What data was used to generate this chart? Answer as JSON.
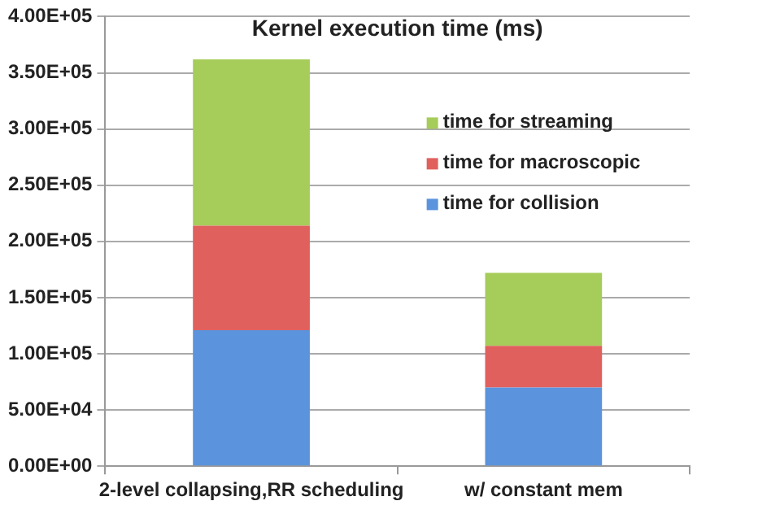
{
  "chart_data": {
    "type": "bar",
    "title": "Kernel execution time (ms)",
    "stacked": true,
    "categories": [
      "2-level collapsing,RR scheduling",
      "w/ constant mem"
    ],
    "series": [
      {
        "name": "time for collision",
        "color": "#5b93dc",
        "values": [
          121000,
          70000
        ]
      },
      {
        "name": "time for macroscopic",
        "color": "#e0605e",
        "values": [
          93000,
          37000
        ]
      },
      {
        "name": "time for streaming",
        "color": "#a6cc5a",
        "values": [
          148000,
          65000
        ]
      }
    ],
    "ylim": [
      0,
      400000
    ],
    "yticks": [
      {
        "value": 0,
        "label": "0.00E+00"
      },
      {
        "value": 50000,
        "label": "5.00E+04"
      },
      {
        "value": 100000,
        "label": "1.00E+05"
      },
      {
        "value": 150000,
        "label": "1.50E+05"
      },
      {
        "value": 200000,
        "label": "2.00E+05"
      },
      {
        "value": 250000,
        "label": "2.50E+05"
      },
      {
        "value": 300000,
        "label": "3.00E+05"
      },
      {
        "value": 350000,
        "label": "3.50E+05"
      },
      {
        "value": 400000,
        "label": "4.00E+05"
      }
    ],
    "grid": "y",
    "legend": "top right"
  }
}
